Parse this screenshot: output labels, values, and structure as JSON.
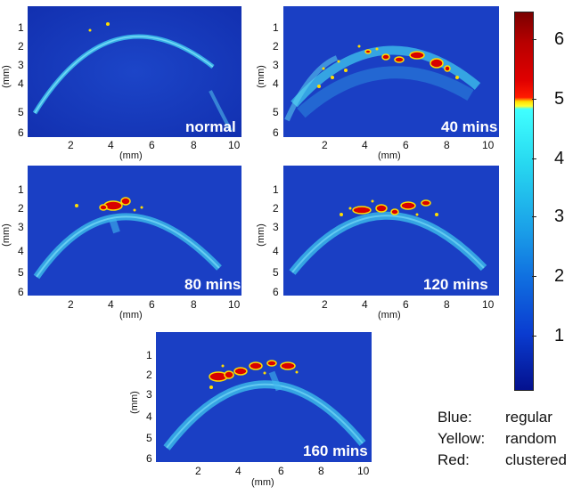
{
  "panels": [
    {
      "id": "normal",
      "label": "normal",
      "y_ticks": [
        "1",
        "2",
        "3",
        "4",
        "5",
        "6"
      ],
      "x_ticks": [
        "2",
        "4",
        "6",
        "8",
        "10"
      ],
      "y_axis_label": "(mm)",
      "x_axis_label": "(mm)"
    },
    {
      "id": "40",
      "label": "40 mins",
      "y_ticks": [
        "1",
        "2",
        "3",
        "4",
        "5",
        "6"
      ],
      "x_ticks": [
        "2",
        "4",
        "6",
        "8",
        "10"
      ],
      "y_axis_label": "(mm)",
      "x_axis_label": "(mm)"
    },
    {
      "id": "80",
      "label": "80 mins",
      "y_ticks": [
        "1",
        "2",
        "3",
        "4",
        "5",
        "6"
      ],
      "x_ticks": [
        "2",
        "4",
        "6",
        "8",
        "10"
      ],
      "y_axis_label": "(mm)",
      "x_axis_label": "(mm)"
    },
    {
      "id": "120",
      "label": "120 mins",
      "y_ticks": [
        "1",
        "2",
        "3",
        "4",
        "5",
        "6"
      ],
      "x_ticks": [
        "2",
        "4",
        "6",
        "8",
        "10"
      ],
      "y_axis_label": "(mm)",
      "x_axis_label": "(mm)"
    },
    {
      "id": "160",
      "label": "160 mins",
      "y_ticks": [
        "1",
        "2",
        "3",
        "4",
        "5",
        "6"
      ],
      "x_ticks": [
        "2",
        "4",
        "6",
        "8",
        "10"
      ],
      "y_axis_label": "(mm)",
      "x_axis_label": "(mm)"
    }
  ],
  "colorbar": {
    "ticks": [
      "6",
      "5",
      "4",
      "3",
      "2",
      "1"
    ],
    "colors": {
      "dark_red": "#7a0000",
      "red": "#e00000",
      "yellow": "#ffff30",
      "cyan": "#40ffff",
      "blue": "#0a3cd0",
      "navy": "#04118e"
    }
  },
  "legend": [
    {
      "key": "Blue:",
      "value": "regular"
    },
    {
      "key": "Yellow:",
      "value": "random"
    },
    {
      "key": "Red:",
      "value": "clustered"
    }
  ]
}
